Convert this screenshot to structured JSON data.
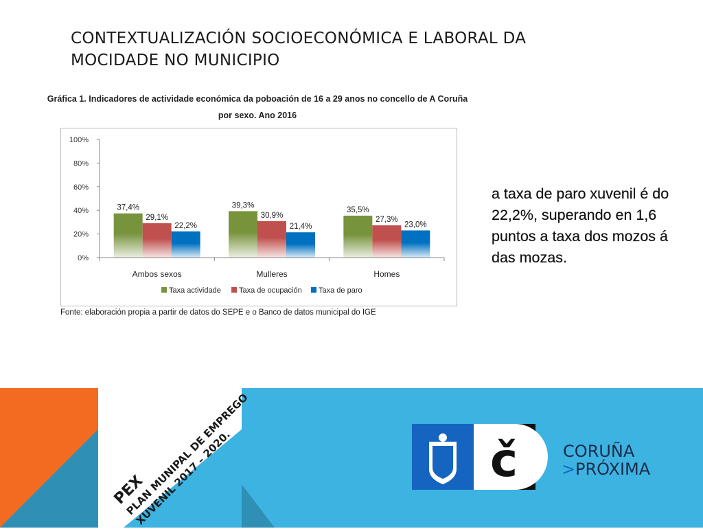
{
  "slide": {
    "title": "CONTEXTUALIZACIÓN SOCIOECONÓMICA E LABORAL DA MOCIDADE NO MUNICIPIO",
    "side_text": "a taxa de paro xuvenil é do 22,2%, superando en 1,6 puntos a taxa dos mozos á das mozas.",
    "source": "Fonte: elaboración propia a partir de datos do SEPE e o Banco de datos municipal do IGE"
  },
  "chart_data": {
    "type": "bar",
    "title": "Gráfica 1. Indicadores de actividade económica da poboación de 16 a 29 anos no concello de A Coruña",
    "subtitle": "por sexo. Ano 2016",
    "categories": [
      "Ambos sexos",
      "Mulleres",
      "Homes"
    ],
    "series": [
      {
        "name": "Taxa actividade",
        "values": [
          37.4,
          39.3,
          35.5
        ],
        "labels": [
          "37,4%",
          "39,3%",
          "35,5%"
        ],
        "color": "#77933c"
      },
      {
        "name": "Taxa de ocupación",
        "values": [
          29.1,
          30.9,
          27.3
        ],
        "labels": [
          "29,1%",
          "30,9%",
          "27,3%"
        ],
        "color": "#c0504d"
      },
      {
        "name": "Taxa de paro",
        "values": [
          22.2,
          21.4,
          23.0
        ],
        "labels": [
          "22,2%",
          "21,4%",
          "23,0%"
        ],
        "color": "#0070c0"
      }
    ],
    "y_ticks": [
      "0%",
      "20%",
      "40%",
      "60%",
      "80%",
      "100%"
    ],
    "ylim": [
      0,
      100
    ],
    "grid": false,
    "legend_position": "bottom"
  },
  "footer": {
    "pex_label": "PEX",
    "plan_line1": "PLAN MUNIPAL DE EMPREGO",
    "plan_line2": "XUVENIL 2017 – 2020.",
    "logo_glyph": "č",
    "logo_line1": "CORUÑA",
    "logo_line2": "PRÓXIMA",
    "logo_chevron": ">",
    "colors": {
      "blue": "#3db3e1",
      "orange": "#f26b21",
      "teal": "#2f8fb5",
      "navy": "#1b2b4b",
      "shield": "#1565c0"
    }
  }
}
